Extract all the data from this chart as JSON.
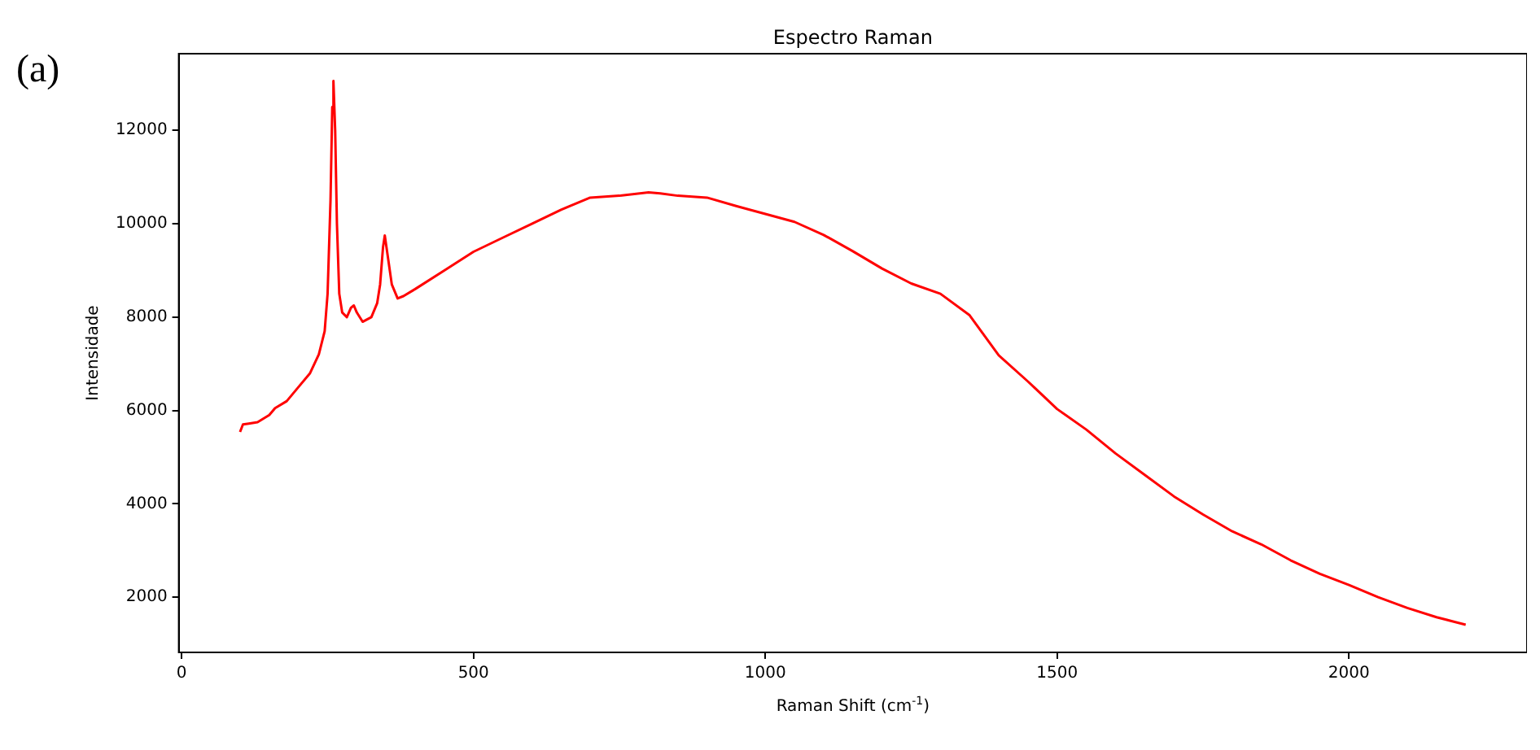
{
  "chart_data": {
    "type": "line",
    "title": "Espectro Raman",
    "xlabel": "Raman Shift (cm$^{-1}$)",
    "ylabel": "Intensidade",
    "annotations": [
      "(a)"
    ],
    "grid": false,
    "legend": false,
    "marker": "none",
    "line_style": "solid",
    "xlim": [
      -5,
      2305
    ],
    "xticks": [
      0,
      500,
      1000,
      1500,
      2000
    ],
    "ylim": [
      817,
      13643
    ],
    "yticks": [
      2000,
      4000,
      6000,
      8000,
      10000,
      12000
    ],
    "series": [
      {
        "color": "#ff0000",
        "x": [
          100,
          105,
          115,
          130,
          150,
          160,
          180,
          200,
          220,
          235,
          245,
          250,
          255,
          258,
          260,
          263,
          266,
          270,
          275,
          283,
          290,
          295,
          300,
          310,
          325,
          335,
          340,
          345,
          348,
          352,
          360,
          370,
          380,
          400,
          450,
          500,
          550,
          600,
          650,
          700,
          750,
          800,
          820,
          850,
          900,
          950,
          1000,
          1050,
          1100,
          1150,
          1200,
          1250,
          1300,
          1350,
          1400,
          1450,
          1500,
          1550,
          1600,
          1650,
          1700,
          1750,
          1800,
          1850,
          1900,
          1950,
          2000,
          2050,
          2100,
          2150,
          2200
        ],
        "values": [
          5540,
          5700,
          5720,
          5750,
          5900,
          6050,
          6200,
          6500,
          6800,
          7200,
          7700,
          8500,
          10500,
          12500,
          13060,
          12000,
          10000,
          8500,
          8100,
          8000,
          8200,
          8250,
          8100,
          7900,
          8000,
          8300,
          8700,
          9500,
          9750,
          9400,
          8700,
          8400,
          8450,
          8600,
          9000,
          9400,
          9700,
          10000,
          10300,
          10560,
          10600,
          10670,
          10650,
          10600,
          10560,
          10380,
          10210,
          10040,
          9760,
          9410,
          9040,
          8720,
          8500,
          8040,
          7180,
          6620,
          6030,
          5590,
          5080,
          4620,
          4160,
          3770,
          3410,
          3130,
          2790,
          2500,
          2260,
          2000,
          1770,
          1570,
          1410
        ]
      }
    ]
  }
}
